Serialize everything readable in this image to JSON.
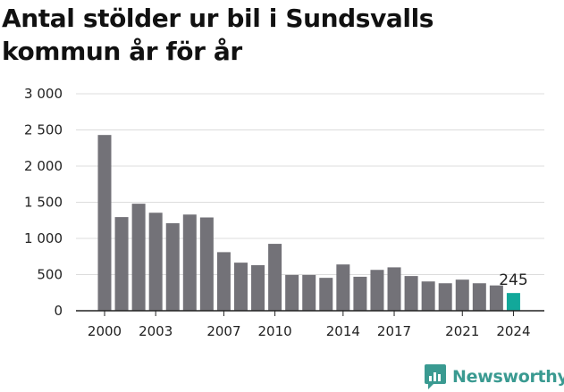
{
  "title": "Antal stölder ur bil i Sundsvalls kommun år för år",
  "logo": {
    "text": "Newsworthy",
    "icon": "newsworthy-chart-bubble-icon",
    "color": "#3a9a91"
  },
  "chart_data": {
    "type": "bar",
    "title": "Antal stölder ur bil i Sundsvalls kommun år för år",
    "xlabel": "",
    "ylabel": "",
    "categories": [
      "2000",
      "2001",
      "2002",
      "2003",
      "2004",
      "2005",
      "2006",
      "2007",
      "2008",
      "2009",
      "2010",
      "2011",
      "2012",
      "2013",
      "2014",
      "2015",
      "2016",
      "2017",
      "2018",
      "2019",
      "2020",
      "2021",
      "2022",
      "2023",
      "2024"
    ],
    "values": [
      2430,
      1295,
      1480,
      1355,
      1210,
      1330,
      1290,
      810,
      665,
      630,
      925,
      495,
      495,
      455,
      640,
      470,
      565,
      600,
      480,
      405,
      380,
      430,
      380,
      350,
      245
    ],
    "ylim": [
      0,
      3000
    ],
    "yticks": [
      0,
      500,
      1000,
      1500,
      2000,
      2500,
      3000
    ],
    "ytick_labels": [
      "0",
      "500",
      "1 000",
      "1 500",
      "2 000",
      "2 500",
      "3 000"
    ],
    "xtick_labels": [
      "2000",
      "2003",
      "2007",
      "2010",
      "2014",
      "2017",
      "2021",
      "2024"
    ],
    "highlight_label": "245",
    "grid": true,
    "colors": {
      "bar": "#737278",
      "highlight": "#12a89a",
      "grid": "#dcdcdc",
      "axis": "#222222"
    }
  }
}
